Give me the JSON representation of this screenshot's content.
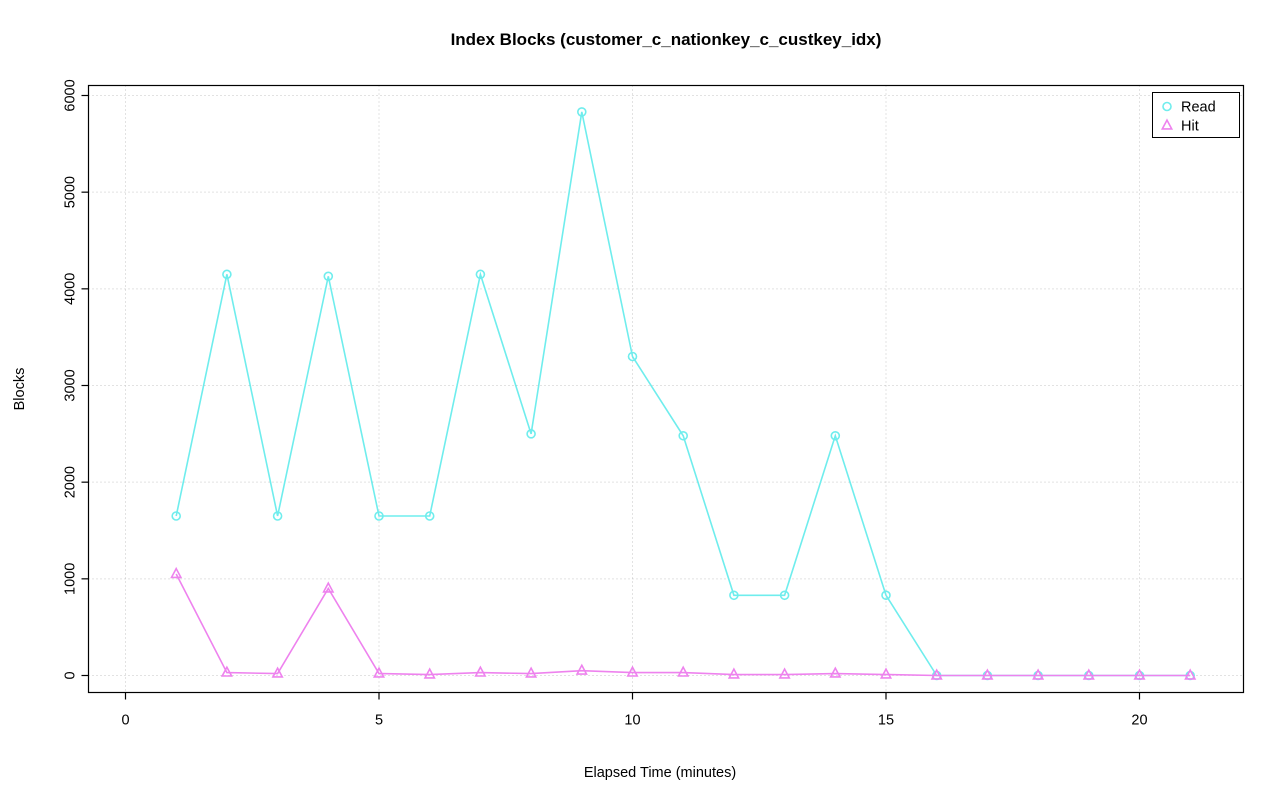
{
  "chart_data": {
    "type": "line",
    "title": "Index Blocks (customer_c_nationkey_c_custkey_idx)",
    "xlabel": "Elapsed Time (minutes)",
    "ylabel": "Blocks",
    "x": [
      1,
      2,
      3,
      4,
      5,
      6,
      7,
      8,
      9,
      10,
      11,
      12,
      13,
      14,
      15,
      16,
      17,
      18,
      19,
      20,
      21
    ],
    "xticks": [
      0,
      5,
      10,
      15,
      20
    ],
    "yticks": [
      0,
      1000,
      2000,
      3000,
      4000,
      5000,
      6000
    ],
    "xlim": [
      0,
      21.8
    ],
    "ylim": [
      0,
      6000
    ],
    "grid": true,
    "grid_color": "#C6C6C6",
    "background_color": "#FFFFFF",
    "legend": {
      "position": "top-right",
      "entries": [
        "Read",
        "Hit"
      ]
    },
    "series": [
      {
        "name": "Read",
        "marker": "circle",
        "color": "#6FEDED",
        "values": [
          1650,
          4150,
          1650,
          4130,
          1650,
          1650,
          4150,
          2500,
          5830,
          3300,
          2480,
          830,
          830,
          2480,
          830,
          0,
          0,
          0,
          0,
          0,
          0
        ]
      },
      {
        "name": "Hit",
        "marker": "triangle",
        "color": "#EE82EE",
        "values": [
          1050,
          30,
          20,
          900,
          20,
          10,
          30,
          20,
          50,
          30,
          30,
          10,
          10,
          20,
          10,
          0,
          0,
          0,
          0,
          0,
          0
        ]
      }
    ]
  }
}
